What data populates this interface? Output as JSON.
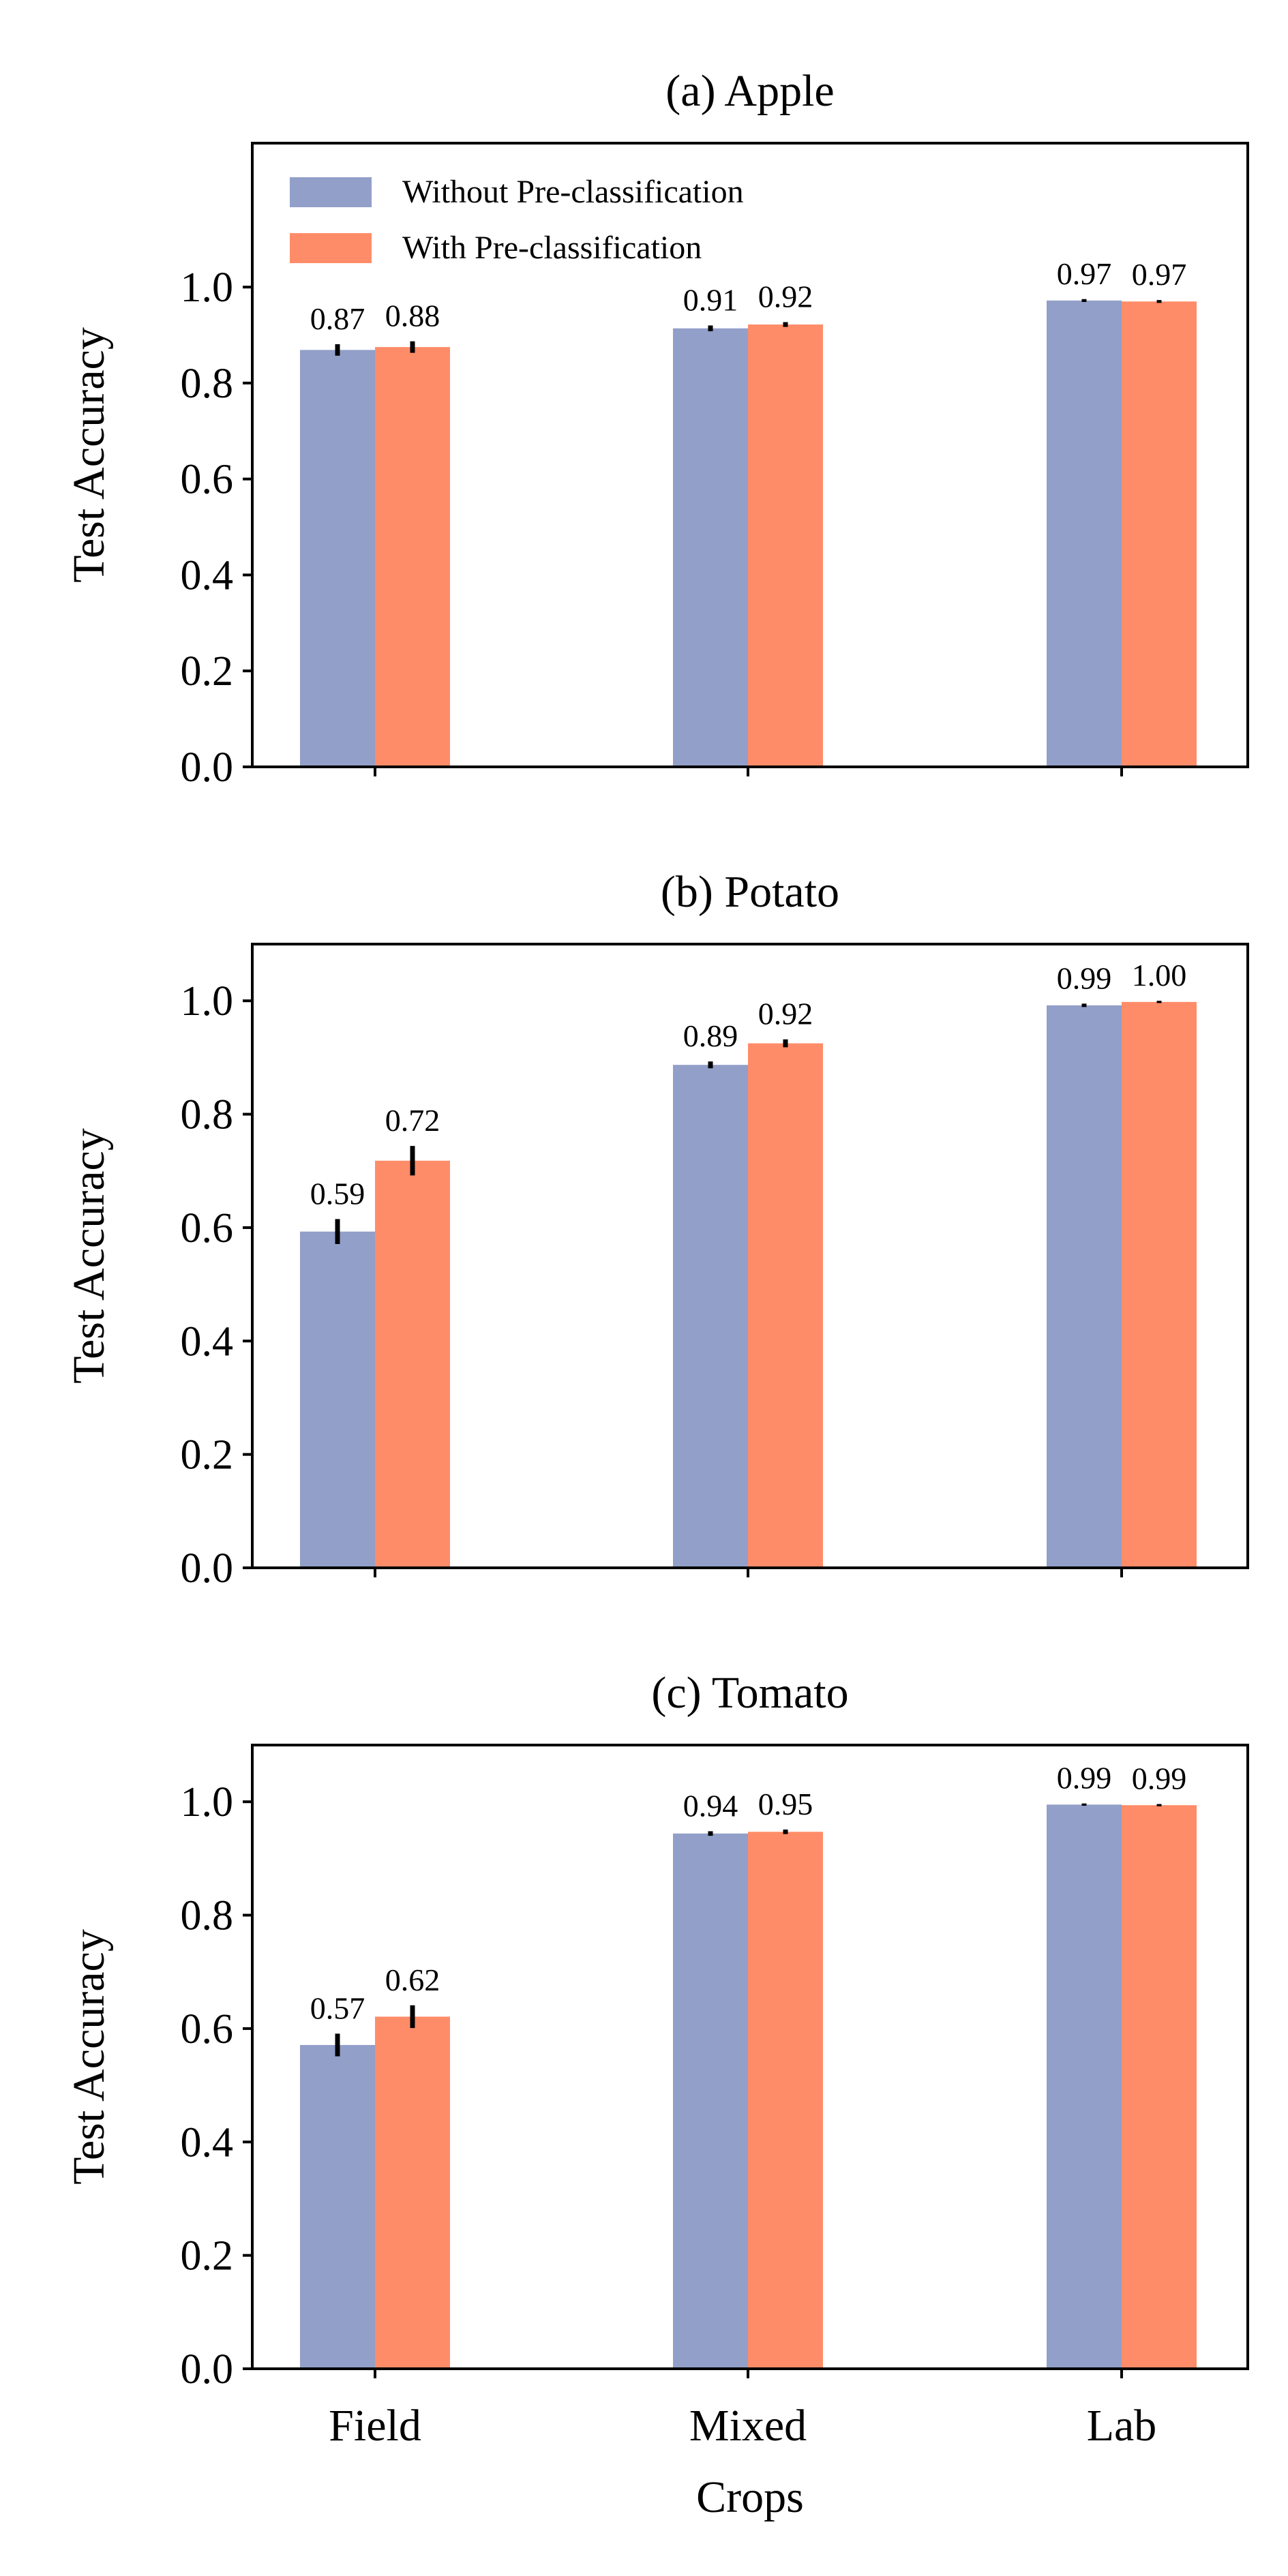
{
  "colors": {
    "without": "#929fc9",
    "with": "#ff8c69"
  },
  "xlabel": "Crops",
  "categories": [
    "Field",
    "Mixed",
    "Lab"
  ],
  "legend": {
    "placement": "top-left",
    "entries": [
      "Without Pre-classification",
      "With Pre-classification"
    ]
  },
  "chart_data": [
    {
      "type": "bar",
      "title": "(a) Apple",
      "ylabel": "Test Accuracy",
      "xlabel": "",
      "ylim": [
        0,
        1.3
      ],
      "yticks": [
        "0.0",
        "0.2",
        "0.4",
        "0.6",
        "0.8",
        "1.0"
      ],
      "categories": [
        "Field",
        "Mixed",
        "Lab"
      ],
      "series": [
        {
          "name": "Without Pre-classification",
          "values": [
            0.869,
            0.914,
            0.972
          ],
          "errors": [
            0.012,
            0.006,
            0.003
          ],
          "labels": [
            "0.87",
            "0.91",
            "0.97"
          ]
        },
        {
          "name": "With Pre-classification",
          "values": [
            0.875,
            0.922,
            0.97
          ],
          "errors": [
            0.012,
            0.005,
            0.003
          ],
          "labels": [
            "0.88",
            "0.92",
            "0.97"
          ]
        }
      ]
    },
    {
      "type": "bar",
      "title": "(b) Potato",
      "ylabel": "Test Accuracy",
      "xlabel": "",
      "ylim": [
        0,
        1.1
      ],
      "yticks": [
        "0.0",
        "0.2",
        "0.4",
        "0.6",
        "0.8",
        "1.0"
      ],
      "categories": [
        "Field",
        "Mixed",
        "Lab"
      ],
      "series": [
        {
          "name": "Without Pre-classification",
          "values": [
            0.593,
            0.887,
            0.992
          ],
          "errors": [
            0.022,
            0.006,
            0.003
          ],
          "labels": [
            "0.59",
            "0.89",
            "0.99"
          ]
        },
        {
          "name": "With Pre-classification",
          "values": [
            0.718,
            0.925,
            0.998
          ],
          "errors": [
            0.026,
            0.007,
            0.002
          ],
          "labels": [
            "0.72",
            "0.92",
            "1.00"
          ]
        }
      ]
    },
    {
      "type": "bar",
      "title": "(c) Tomato",
      "ylabel": "Test Accuracy",
      "xlabel": "Crops",
      "ylim": [
        0,
        1.1
      ],
      "yticks": [
        "0.0",
        "0.2",
        "0.4",
        "0.6",
        "0.8",
        "1.0"
      ],
      "categories": [
        "Field",
        "Mixed",
        "Lab"
      ],
      "series": [
        {
          "name": "Without Pre-classification",
          "values": [
            0.571,
            0.944,
            0.995
          ],
          "errors": [
            0.02,
            0.004,
            0.002
          ],
          "labels": [
            "0.57",
            "0.94",
            "0.99"
          ]
        },
        {
          "name": "With Pre-classification",
          "values": [
            0.621,
            0.947,
            0.994
          ],
          "errors": [
            0.02,
            0.004,
            0.002
          ],
          "labels": [
            "0.62",
            "0.95",
            "0.99"
          ]
        }
      ]
    }
  ]
}
